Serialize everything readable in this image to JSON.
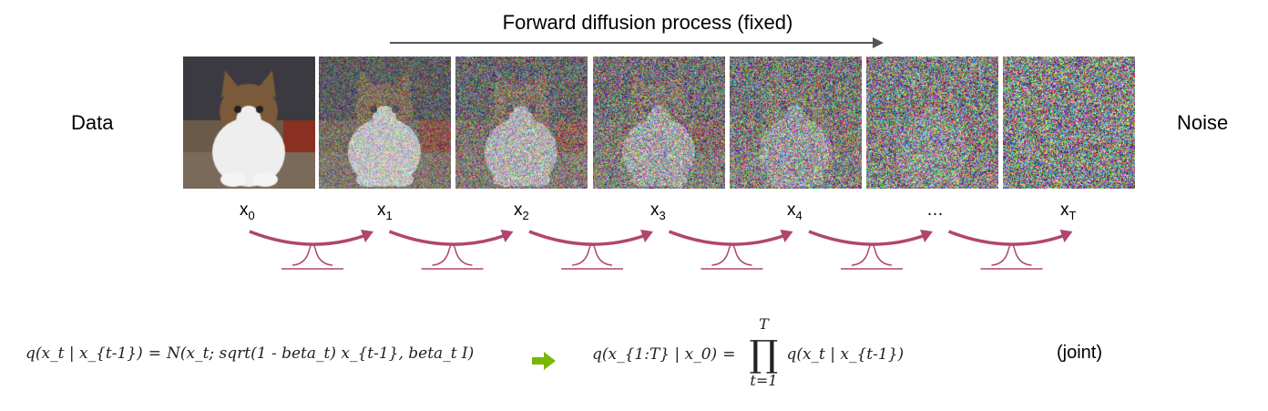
{
  "title": "Forward diffusion process (fixed)",
  "left_label": "Data",
  "right_label": "Noise",
  "steps": [
    {
      "label": "x",
      "sub": "0",
      "noise": 0.0
    },
    {
      "label": "x",
      "sub": "1",
      "noise": 0.45
    },
    {
      "label": "x",
      "sub": "2",
      "noise": 0.6
    },
    {
      "label": "x",
      "sub": "3",
      "noise": 0.72
    },
    {
      "label": "x",
      "sub": "4",
      "noise": 0.8
    },
    {
      "label": "…",
      "sub": "",
      "noise": 0.9
    },
    {
      "label": "x",
      "sub": "T",
      "noise": 1.0
    }
  ],
  "formula_step": {
    "lhs": "q(x_t | x_{t-1})",
    "eq": "=",
    "rhs": "N(x_t; sqrt(1 - beta_t) x_{t-1}, beta_t I)"
  },
  "formula_joint": {
    "lhs": "q(x_{1:T} | x_0)",
    "eq": "=",
    "prod_upper": "T",
    "prod_lower": "t=1",
    "rhs": "q(x_t | x_{t-1})"
  },
  "joint_label": "(joint)",
  "colors": {
    "arrow": "#b0466f",
    "implies": "#76b900",
    "top_arrow": "#555555"
  }
}
